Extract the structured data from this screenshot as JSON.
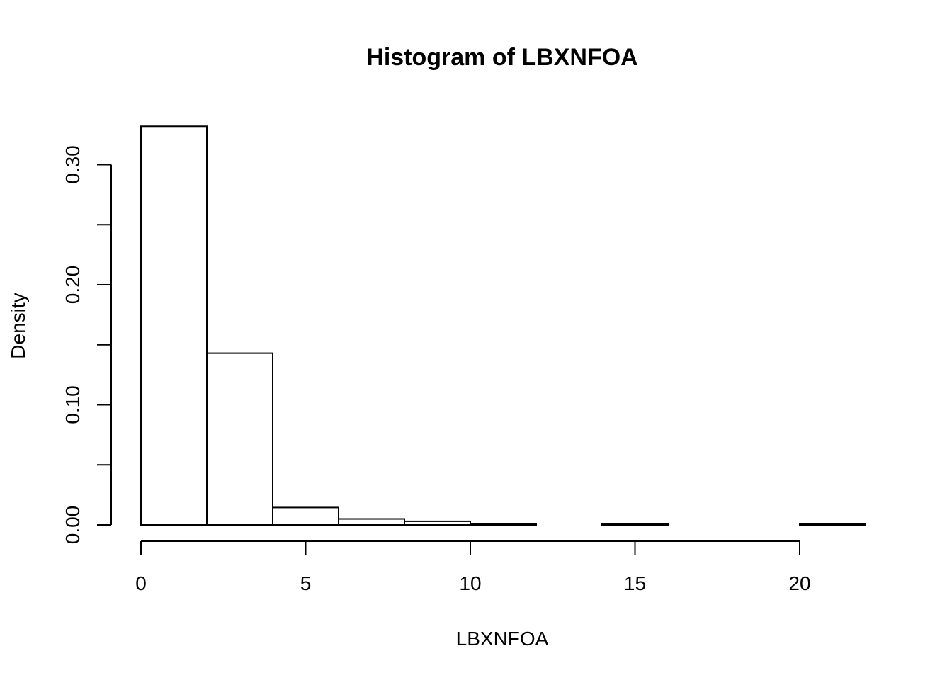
{
  "chart_data": {
    "type": "bar",
    "subtype": "histogram",
    "title": "Histogram of LBXNFOA",
    "xlabel": "LBXNFOA",
    "ylabel": "Density",
    "bins": [
      {
        "x0": 0,
        "x1": 2,
        "density": 0.332
      },
      {
        "x0": 2,
        "x1": 4,
        "density": 0.143
      },
      {
        "x0": 4,
        "x1": 6,
        "density": 0.0145
      },
      {
        "x0": 6,
        "x1": 8,
        "density": 0.005
      },
      {
        "x0": 8,
        "x1": 10,
        "density": 0.003
      },
      {
        "x0": 10,
        "x1": 12,
        "density": 0.0007
      },
      {
        "x0": 12,
        "x1": 14,
        "density": 0.0
      },
      {
        "x0": 14,
        "x1": 16,
        "density": 0.0007
      },
      {
        "x0": 16,
        "x1": 18,
        "density": 0.0
      },
      {
        "x0": 18,
        "x1": 20,
        "density": 0.0
      },
      {
        "x0": 20,
        "x1": 22,
        "density": 0.0007
      }
    ],
    "xlim": [
      0,
      22
    ],
    "ylim": [
      0,
      0.332
    ],
    "x_ticks": [
      0,
      5,
      10,
      15,
      20
    ],
    "x_tick_labels": [
      "0",
      "5",
      "10",
      "15",
      "20"
    ],
    "y_ticks": [
      0,
      0.05,
      0.1,
      0.15,
      0.2,
      0.25,
      0.3
    ],
    "y_tick_labels": [
      "0.00",
      "",
      "0.10",
      "",
      "0.20",
      "",
      "0.30"
    ],
    "grid": false,
    "bar_fill": "#ffffff",
    "bar_stroke": "#000000"
  }
}
